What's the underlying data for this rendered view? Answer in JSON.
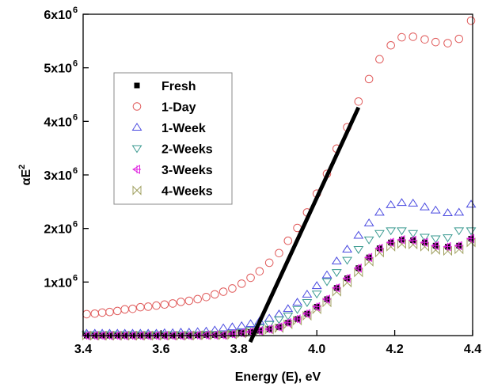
{
  "chart_data": {
    "type": "scatter",
    "title": "",
    "xlabel": "Energy (E), eV",
    "ylabel": "αE",
    "ylabel_superscript": "2",
    "xlim": [
      3.4,
      4.4
    ],
    "ylim": [
      0,
      6000000
    ],
    "xticks": [
      3.4,
      3.6,
      3.8,
      4.0,
      4.2,
      4.4
    ],
    "xtick_labels": [
      "3.4",
      "3.6",
      "3.8",
      "4.0",
      "4.2",
      "4.4"
    ],
    "yticks": [
      1000000,
      2000000,
      3000000,
      4000000,
      5000000,
      6000000
    ],
    "ytick_labels": [
      {
        "base": "1x10",
        "exp": "6"
      },
      {
        "base": "2x10",
        "exp": "6"
      },
      {
        "base": "3x10",
        "exp": "6"
      },
      {
        "base": "4x10",
        "exp": "6"
      },
      {
        "base": "5x10",
        "exp": "6"
      },
      {
        "base": "6x10",
        "exp": "6"
      }
    ],
    "grid": false,
    "legend_position": "upper-left",
    "y_unit_multiplier": 1000000,
    "x": [
      3.409,
      3.43,
      3.449,
      3.468,
      3.488,
      3.507,
      3.527,
      3.547,
      3.567,
      3.588,
      3.609,
      3.63,
      3.651,
      3.672,
      3.694,
      3.716,
      3.738,
      3.76,
      3.783,
      3.807,
      3.83,
      3.853,
      3.878,
      3.903,
      3.926,
      3.95,
      3.975,
      4.0,
      4.026,
      4.051,
      4.078,
      4.107,
      4.134,
      4.161,
      4.19,
      4.218,
      4.247,
      4.277,
      4.305,
      4.336,
      4.365,
      4.396
    ],
    "series": [
      {
        "name": "Fresh",
        "marker": "square",
        "color": "#000000",
        "values": [
          0,
          0,
          0,
          0,
          0,
          0,
          0,
          0,
          0,
          0,
          0,
          0,
          0,
          0,
          0.005,
          0.01,
          0.01,
          0.01,
          0.03,
          0.05,
          0.07,
          0.09,
          0.12,
          0.16,
          0.24,
          0.31,
          0.41,
          0.54,
          0.68,
          0.89,
          1.07,
          1.26,
          1.46,
          1.63,
          1.74,
          1.79,
          1.78,
          1.74,
          1.68,
          1.66,
          1.68,
          1.81
        ]
      },
      {
        "name": "1-Day",
        "marker": "circle",
        "color": "#e05a5a",
        "values": [
          0.4,
          0.41,
          0.43,
          0.44,
          0.46,
          0.49,
          0.5,
          0.53,
          0.54,
          0.56,
          0.58,
          0.6,
          0.63,
          0.65,
          0.68,
          0.72,
          0.77,
          0.82,
          0.88,
          0.97,
          1.08,
          1.2,
          1.36,
          1.54,
          1.77,
          2.01,
          2.3,
          2.65,
          3.02,
          3.49,
          3.89,
          4.37,
          4.79,
          5.16,
          5.42,
          5.57,
          5.58,
          5.53,
          5.48,
          5.46,
          5.54,
          5.88
        ]
      },
      {
        "name": "1-Week",
        "marker": "triangle-up",
        "color": "#4a4ae0",
        "values": [
          0.04,
          0.04,
          0.04,
          0.04,
          0.04,
          0.04,
          0.04,
          0.04,
          0.04,
          0.04,
          0.05,
          0.05,
          0.06,
          0.06,
          0.07,
          0.08,
          0.1,
          0.14,
          0.16,
          0.18,
          0.22,
          0.27,
          0.32,
          0.4,
          0.5,
          0.62,
          0.77,
          0.93,
          1.13,
          1.39,
          1.61,
          1.87,
          2.1,
          2.3,
          2.44,
          2.48,
          2.47,
          2.4,
          2.34,
          2.29,
          2.3,
          2.45
        ]
      },
      {
        "name": "2-Weeks",
        "marker": "triangle-down",
        "color": "#3a9a90",
        "values": [
          0.02,
          0.02,
          0.02,
          0.02,
          0.02,
          0.02,
          0.02,
          0.02,
          0.02,
          0.02,
          0.02,
          0.02,
          0.02,
          0.02,
          0.02,
          0.03,
          0.03,
          0.03,
          0.04,
          0.06,
          0.1,
          0.15,
          0.21,
          0.3,
          0.37,
          0.49,
          0.62,
          0.78,
          1.01,
          1.18,
          1.41,
          1.61,
          1.79,
          1.91,
          1.96,
          1.96,
          1.91,
          1.84,
          1.81,
          1.83,
          1.96,
          1.96
        ]
      },
      {
        "name": "3-Weeks",
        "marker": "triangle-left-cross",
        "color": "#e020e0",
        "values": [
          0,
          0,
          0,
          0,
          0,
          0,
          0,
          0,
          0,
          0,
          0,
          0,
          0,
          0,
          0.005,
          0.01,
          0.01,
          0.01,
          0.03,
          0.05,
          0.07,
          0.09,
          0.12,
          0.16,
          0.24,
          0.31,
          0.41,
          0.54,
          0.68,
          0.89,
          1.07,
          1.26,
          1.46,
          1.63,
          1.74,
          1.79,
          1.78,
          1.74,
          1.68,
          1.66,
          1.68,
          1.81
        ]
      },
      {
        "name": "4-Weeks",
        "marker": "bowtie",
        "color": "#a0a060",
        "values": [
          0,
          0,
          0,
          0,
          0,
          0,
          0,
          0,
          0,
          0,
          0,
          0,
          0,
          0,
          0.005,
          0.01,
          0.01,
          0.01,
          0.02,
          0.04,
          0.06,
          0.08,
          0.11,
          0.14,
          0.21,
          0.28,
          0.37,
          0.49,
          0.62,
          0.82,
          0.99,
          1.18,
          1.38,
          1.55,
          1.66,
          1.71,
          1.7,
          1.66,
          1.6,
          1.58,
          1.61,
          1.74
        ]
      }
    ],
    "annotations": [
      {
        "type": "line",
        "description": "linear extrapolation",
        "from": [
          3.829,
          -0.12
        ],
        "to": [
          4.107,
          4.26
        ],
        "color": "#000000"
      }
    ]
  }
}
